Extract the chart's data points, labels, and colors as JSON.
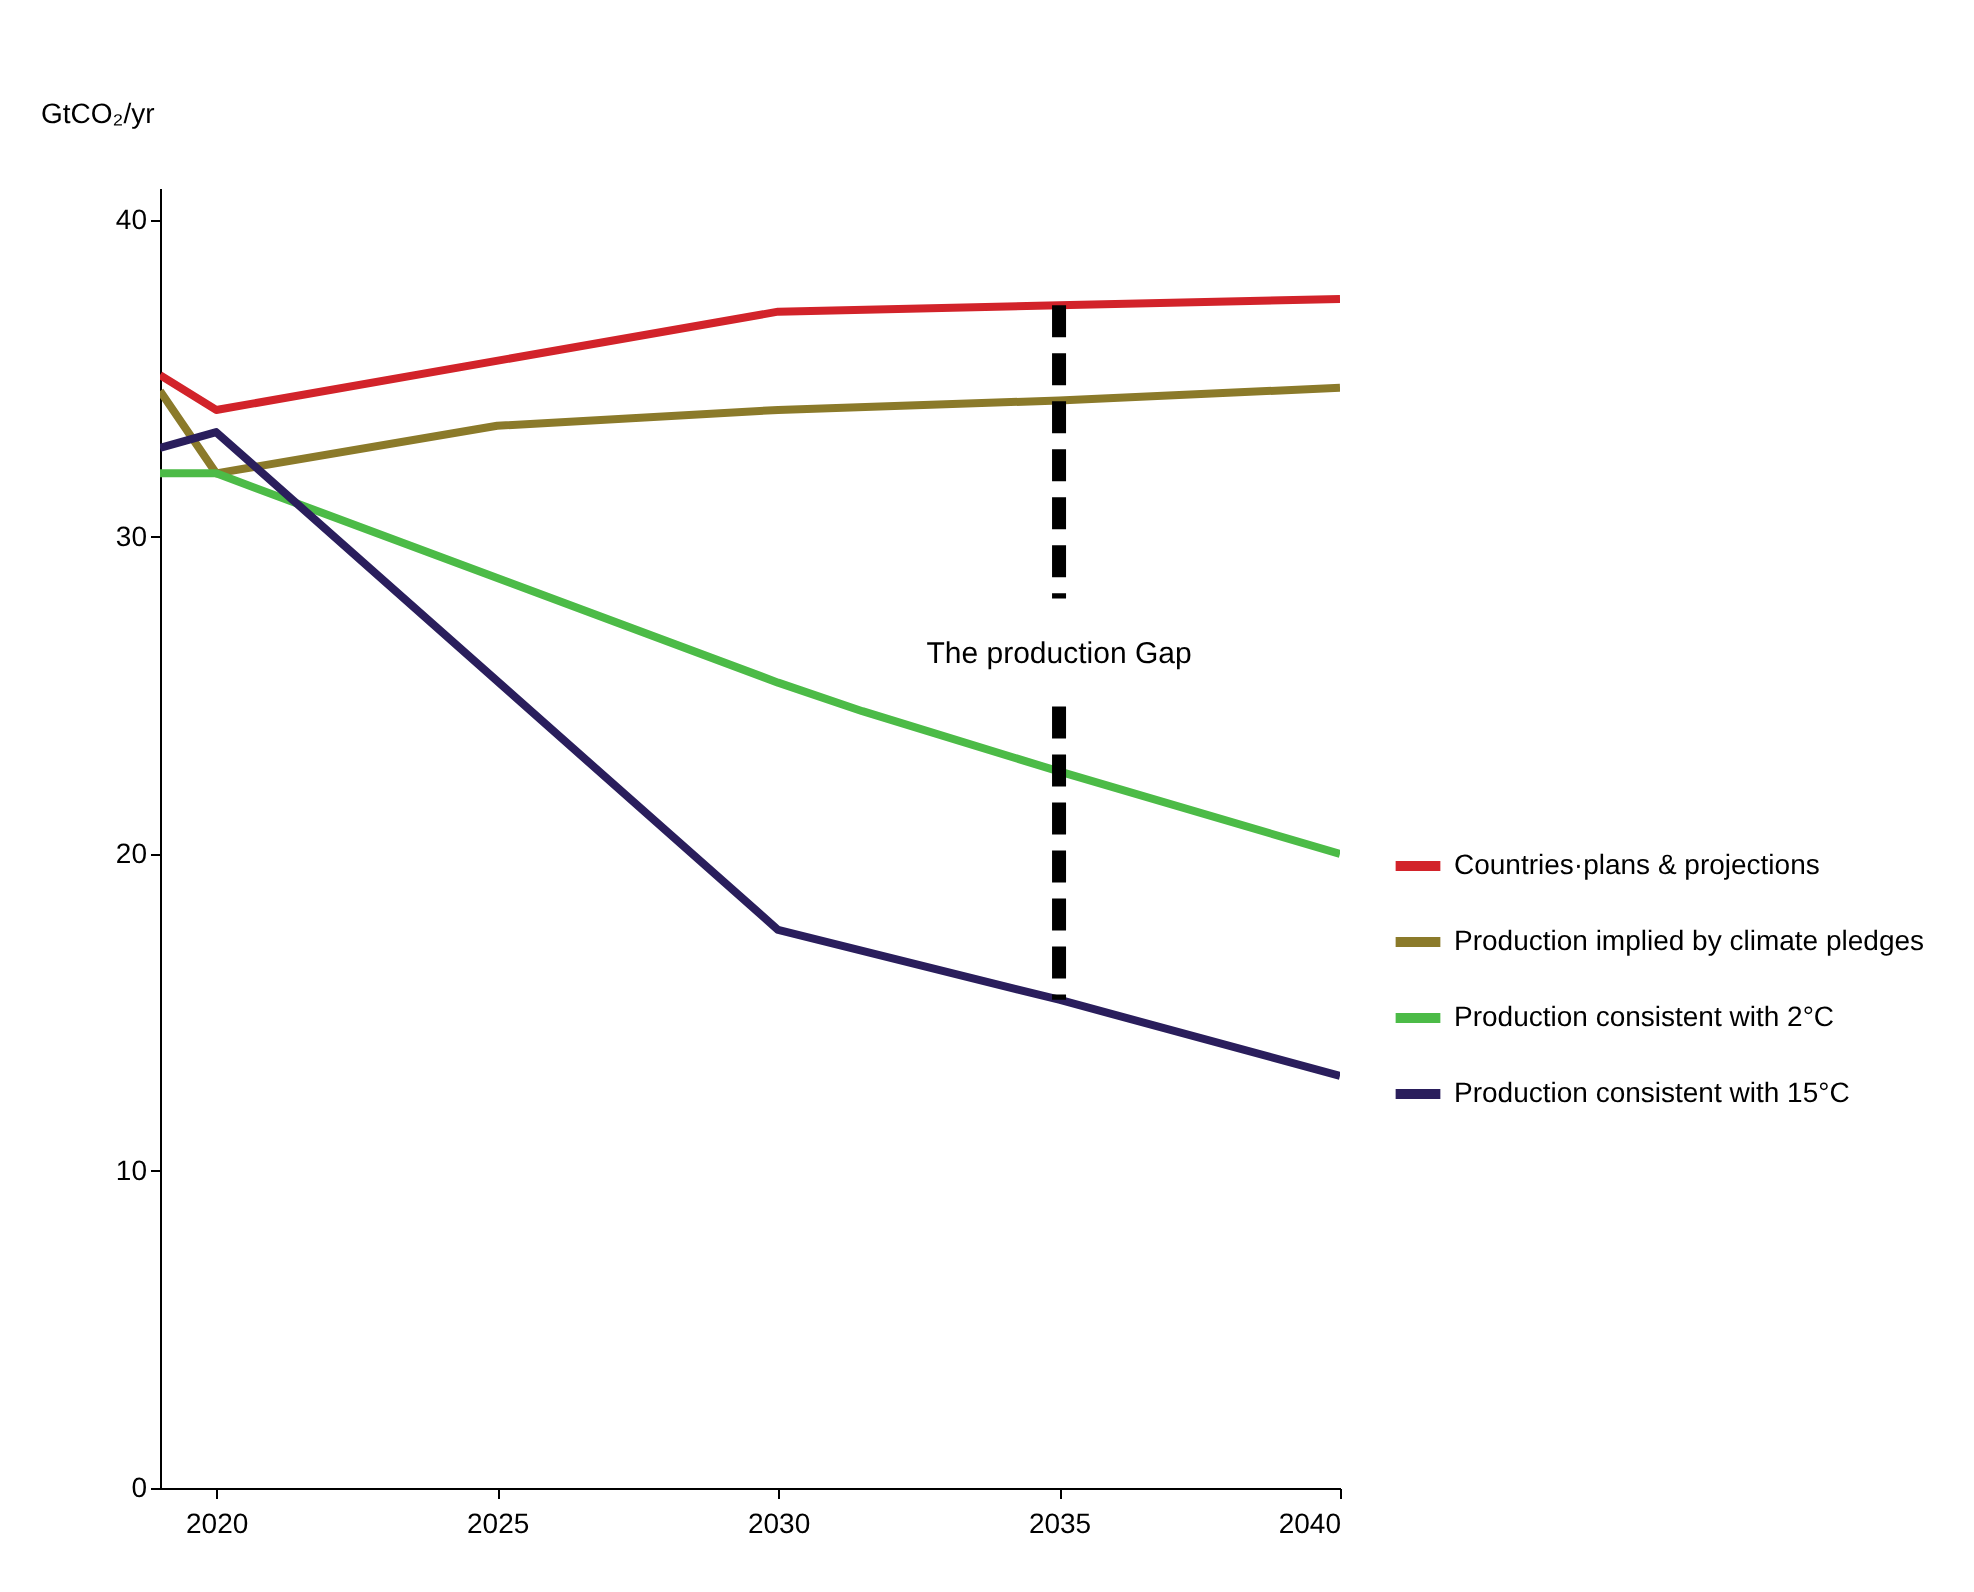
{
  "chart_data": {
    "type": "line",
    "ylabel": "GtCO₂/yr",
    "series": [
      {
        "name": "Countries·plans & projections",
        "color": "#d2232a",
        "x": [
          2019,
          2020,
          2030,
          2035,
          2040
        ],
        "values": [
          35.1,
          34.0,
          37.1,
          37.3,
          37.5
        ]
      },
      {
        "name": "Production implied by climate pledges",
        "color": "#8b7a2a",
        "x": [
          2019,
          2020,
          2025,
          2030,
          2035,
          2040
        ],
        "values": [
          34.6,
          32.0,
          33.5,
          34.0,
          34.3,
          34.7
        ]
      },
      {
        "name": "Production consistent with 2°C",
        "color": "#4cbb47",
        "x": [
          2019,
          2020,
          2030,
          2031.5,
          2035,
          2040
        ],
        "values": [
          32.0,
          32.0,
          25.4,
          24.5,
          22.6,
          20.0
        ]
      },
      {
        "name": "Production consistent with 15°C",
        "color": "#2a1e5c",
        "x": [
          2019,
          2020,
          2030,
          2035,
          2040
        ],
        "values": [
          32.8,
          33.3,
          17.6,
          15.4,
          13.0
        ]
      }
    ],
    "annotations": [
      {
        "text": "The production Gap",
        "x": 2035,
        "y": 37.3
      }
    ],
    "xlim": [
      2019,
      2040
    ],
    "xticks": [
      2020,
      2025,
      2030,
      2035,
      2040
    ],
    "ylim": [
      0,
      41
    ],
    "yticks": [
      0,
      10,
      20,
      30,
      40
    ],
    "grid": false,
    "legend": "bottom right",
    "line_style": "solid",
    "marker": "none"
  }
}
